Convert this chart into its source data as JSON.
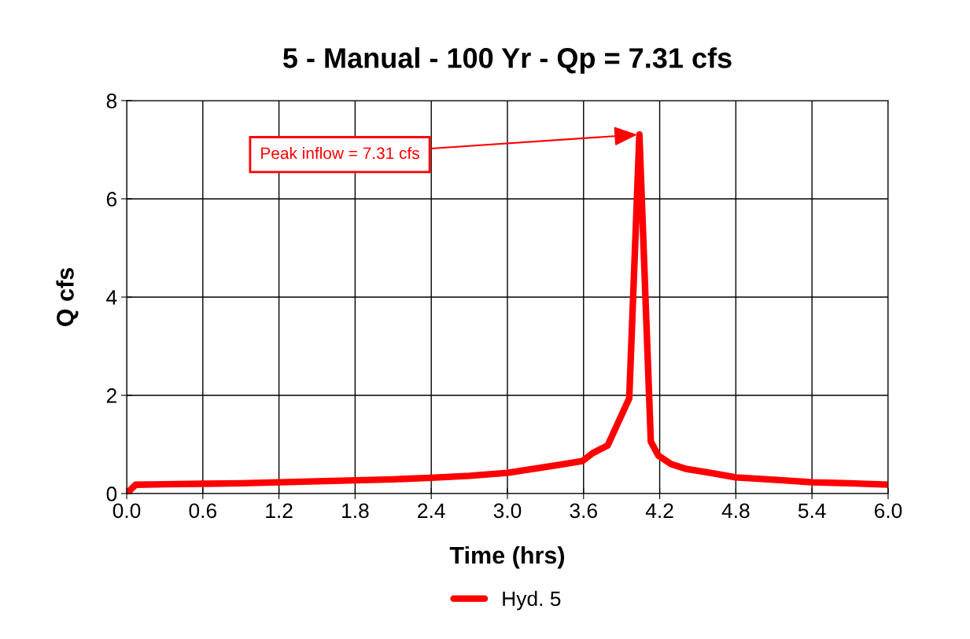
{
  "chart_data": {
    "type": "line",
    "title": "5 - Manual - 100 Yr - Qp = 7.31 cfs",
    "xlabel": "Time (hrs)",
    "ylabel": "Q cfs",
    "series": [
      {
        "name": "Hyd. 5",
        "color": "#ff0000",
        "x": [
          0,
          0.07,
          0.3,
          0.6,
          0.9,
          1.2,
          1.5,
          1.8,
          2.1,
          2.4,
          2.7,
          3.0,
          3.2,
          3.4,
          3.59,
          3.67,
          3.79,
          3.96,
          4.04,
          4.13,
          4.19,
          4.29,
          4.41,
          4.6,
          4.8,
          5.1,
          5.4,
          5.7,
          6.0
        ],
        "values": [
          0,
          0.18,
          0.19,
          0.2,
          0.21,
          0.23,
          0.25,
          0.27,
          0.29,
          0.32,
          0.36,
          0.42,
          0.5,
          0.58,
          0.66,
          0.82,
          0.98,
          1.94,
          7.31,
          1.06,
          0.77,
          0.6,
          0.5,
          0.42,
          0.33,
          0.28,
          0.23,
          0.21,
          0.18
        ]
      }
    ],
    "annotations": [
      {
        "text": "Peak inflow = 7.31 cfs",
        "x": 4.04,
        "y": 7.31
      }
    ],
    "xlim": [
      0,
      6
    ],
    "xticks": [
      {
        "value": 0,
        "label": "0.0"
      },
      {
        "value": 0.6,
        "label": "0.6"
      },
      {
        "value": 1.2,
        "label": "1.2"
      },
      {
        "value": 1.8,
        "label": "1.8"
      },
      {
        "value": 2.4,
        "label": "2.4"
      },
      {
        "value": 3.0,
        "label": "3.0"
      },
      {
        "value": 3.6,
        "label": "3.6"
      },
      {
        "value": 4.2,
        "label": "4.2"
      },
      {
        "value": 4.8,
        "label": "4.8"
      },
      {
        "value": 5.4,
        "label": "5.4"
      },
      {
        "value": 6.0,
        "label": "6.0"
      }
    ],
    "ylim": [
      0,
      8
    ],
    "yticks": [
      0,
      2,
      4,
      6,
      8
    ],
    "grid": true,
    "legend": "bottom",
    "marker": "none",
    "line_style": "solid"
  }
}
